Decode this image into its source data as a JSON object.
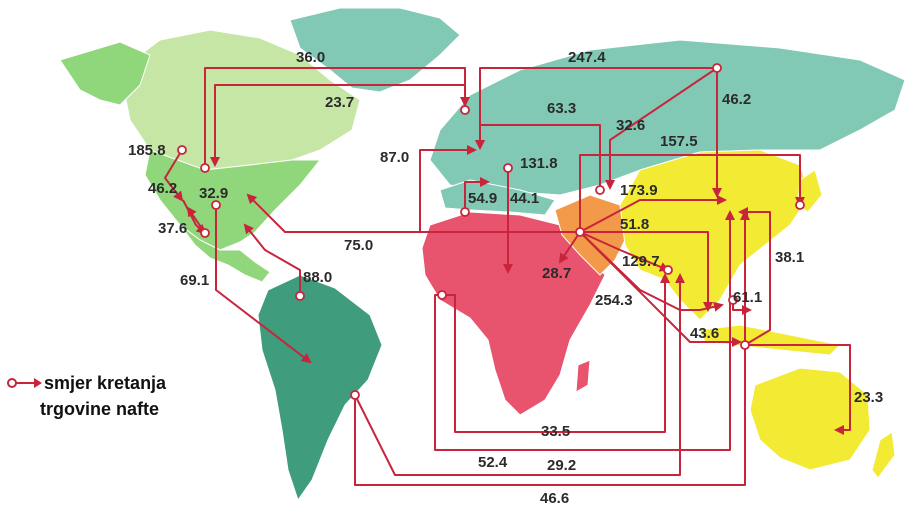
{
  "colors": {
    "route": "#c8243c",
    "north_america": "#8fd77a",
    "canada": "#c6e6a6",
    "greenland": "#82c9b5",
    "south_america": "#3f9c7d",
    "europe_russia": "#82c9b5",
    "africa": "#e8536e",
    "middle_east": "#f29a4a",
    "asia_pacific": "#f2ea33",
    "background": "#ffffff"
  },
  "legend": {
    "line1": "smjer kretanja",
    "line2": "trgovine nafte"
  },
  "flows": [
    {
      "id": "f1",
      "label": "36.0"
    },
    {
      "id": "f2",
      "label": "23.7"
    },
    {
      "id": "f3",
      "label": "247.4"
    },
    {
      "id": "f4",
      "label": "46.2"
    },
    {
      "id": "f5",
      "label": "63.3"
    },
    {
      "id": "f6",
      "label": "32.6"
    },
    {
      "id": "f7",
      "label": "157.5"
    },
    {
      "id": "f8",
      "label": "87.0"
    },
    {
      "id": "f9",
      "label": "131.8"
    },
    {
      "id": "f10",
      "label": "185.8"
    },
    {
      "id": "f11",
      "label": "46.2"
    },
    {
      "id": "f12",
      "label": "32.9"
    },
    {
      "id": "f13",
      "label": "54.9"
    },
    {
      "id": "f14",
      "label": "44.1"
    },
    {
      "id": "f15",
      "label": "173.9"
    },
    {
      "id": "f16",
      "label": "37.6"
    },
    {
      "id": "f17",
      "label": "51.8"
    },
    {
      "id": "f18",
      "label": "75.0"
    },
    {
      "id": "f19",
      "label": "38.1"
    },
    {
      "id": "f20",
      "label": "28.7"
    },
    {
      "id": "f21",
      "label": "129.7"
    },
    {
      "id": "f22",
      "label": "69.1"
    },
    {
      "id": "f23",
      "label": "88.0"
    },
    {
      "id": "f24",
      "label": "61.1"
    },
    {
      "id": "f25",
      "label": "254.3"
    },
    {
      "id": "f26",
      "label": "43.6"
    },
    {
      "id": "f27",
      "label": "23.3"
    },
    {
      "id": "f28",
      "label": "33.5"
    },
    {
      "id": "f29",
      "label": "52.4"
    },
    {
      "id": "f30",
      "label": "29.2"
    },
    {
      "id": "f31",
      "label": "46.6"
    }
  ]
}
